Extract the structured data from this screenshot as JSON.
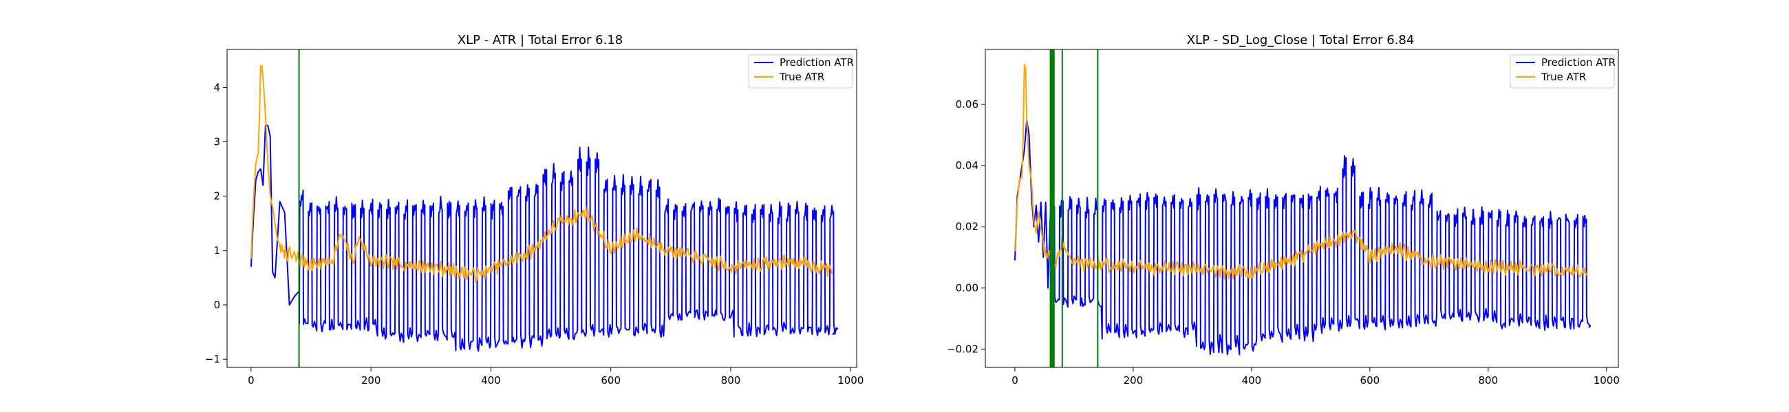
{
  "chart_data": [
    {
      "type": "line",
      "title": "XLP - ATR | Total Error 6.18",
      "xlabel": "",
      "ylabel": "",
      "xlim": [
        -40,
        1010
      ],
      "ylim": [
        -1.15,
        4.7
      ],
      "xticks": [
        0,
        200,
        400,
        600,
        800,
        1000
      ],
      "xtick_labels": [
        "0",
        "200",
        "400",
        "600",
        "800",
        "1000"
      ],
      "yticks": [
        -1,
        0,
        1,
        2,
        3,
        4
      ],
      "ytick_labels": [
        "−1",
        "0",
        "1",
        "2",
        "3",
        "4"
      ],
      "grid": false,
      "legend_position": "upper right",
      "vlines": [
        80
      ],
      "vline_color": "#008000",
      "series": [
        {
          "name": "Prediction ATR",
          "color": "#0000ff",
          "profile": {
            "x": [
              0,
              4,
              8,
              12,
              16,
              20,
              24,
              28,
              32,
              36,
              40,
              48,
              56,
              64,
              72,
              80
            ],
            "y": [
              0.7,
              1.6,
              2.3,
              2.45,
              2.5,
              2.2,
              3.3,
              3.3,
              3.1,
              0.6,
              0.5,
              1.9,
              1.7,
              0.0,
              0.15,
              0.25
            ]
          },
          "waves": [
            {
              "x": [
                80,
                90
              ],
              "hi": 2.1,
              "lo": -0.3
            },
            {
              "x": [
                90,
                200
              ],
              "hi": 1.9,
              "lo": -0.4
            },
            {
              "x": [
                200,
                330
              ],
              "hi": 1.9,
              "lo": -0.6
            },
            {
              "x": [
                330,
                420
              ],
              "hi": 1.9,
              "lo": -0.75
            },
            {
              "x": [
                420,
                480
              ],
              "hi": 2.2,
              "lo": -0.7
            },
            {
              "x": [
                480,
                540
              ],
              "hi": 2.5,
              "lo": -0.6
            },
            {
              "x": [
                540,
                580
              ],
              "hi": 2.8,
              "lo": -0.5
            },
            {
              "x": [
                580,
                680
              ],
              "hi": 2.3,
              "lo": -0.5
            },
            {
              "x": [
                680,
                800
              ],
              "hi": 1.9,
              "lo": -0.2
            },
            {
              "x": [
                800,
                970
              ],
              "hi": 1.8,
              "lo": -0.5
            }
          ],
          "period": 14.5,
          "end": {
            "x": 970,
            "y": -0.55
          }
        },
        {
          "name": "True ATR",
          "color": "#ffa500",
          "profile": {
            "x": [
              0,
              4,
              8,
              12,
              14,
              16,
              18,
              20,
              24,
              28,
              32,
              36,
              40,
              44,
              48
            ],
            "y": [
              0.85,
              1.9,
              2.6,
              2.8,
              3.5,
              4.4,
              4.4,
              4.2,
              3.5,
              2.6,
              2.0,
              1.8,
              1.5,
              1.2,
              1.1
            ]
          },
          "baseline": [
            {
              "x": 48,
              "y": 1.0
            },
            {
              "x": 100,
              "y": 0.75
            },
            {
              "x": 135,
              "y": 0.8
            },
            {
              "x": 150,
              "y": 1.3
            },
            {
              "x": 170,
              "y": 0.8
            },
            {
              "x": 180,
              "y": 1.25
            },
            {
              "x": 200,
              "y": 0.8
            },
            {
              "x": 300,
              "y": 0.7
            },
            {
              "x": 380,
              "y": 0.55
            },
            {
              "x": 420,
              "y": 0.75
            },
            {
              "x": 470,
              "y": 1.0
            },
            {
              "x": 510,
              "y": 1.5
            },
            {
              "x": 560,
              "y": 1.7
            },
            {
              "x": 600,
              "y": 1.0
            },
            {
              "x": 640,
              "y": 1.3
            },
            {
              "x": 700,
              "y": 1.0
            },
            {
              "x": 800,
              "y": 0.7
            },
            {
              "x": 900,
              "y": 0.8
            },
            {
              "x": 970,
              "y": 0.65
            }
          ]
        }
      ]
    },
    {
      "type": "line",
      "title": "XLP - SD_Log_Close | Total Error 6.84",
      "xlabel": "",
      "ylabel": "",
      "xlim": [
        -50,
        1020
      ],
      "ylim": [
        -0.026,
        0.078
      ],
      "xticks": [
        0,
        200,
        400,
        600,
        800,
        1000
      ],
      "xtick_labels": [
        "0",
        "200",
        "400",
        "600",
        "800",
        "1000"
      ],
      "yticks": [
        -0.02,
        0.0,
        0.02,
        0.04,
        0.06
      ],
      "ytick_labels": [
        "−0.02",
        "0.00",
        "0.02",
        "0.04",
        "0.06"
      ],
      "grid": false,
      "legend_position": "upper right",
      "vlines": [
        60,
        61.5,
        63,
        64.5,
        66,
        80,
        140
      ],
      "vline_color": "#008000",
      "series": [
        {
          "name": "Prediction ATR",
          "color": "#0000ff",
          "profile": {
            "x": [
              0,
              4,
              8,
              12,
              16,
              20,
              24,
              28,
              32,
              36,
              40,
              44,
              48,
              52,
              56,
              60
            ],
            "y": [
              0.009,
              0.03,
              0.035,
              0.04,
              0.045,
              0.055,
              0.05,
              0.03,
              0.02,
              0.027,
              0.015,
              0.028,
              0.01,
              0.028,
              0.0,
              0.025
            ]
          },
          "waves": [
            {
              "x": [
                60,
                140
              ],
              "hi": 0.028,
              "lo": -0.005
            },
            {
              "x": [
                140,
                300
              ],
              "hi": 0.03,
              "lo": -0.015
            },
            {
              "x": [
                300,
                400
              ],
              "hi": 0.031,
              "lo": -0.02
            },
            {
              "x": [
                400,
                500
              ],
              "hi": 0.031,
              "lo": -0.016
            },
            {
              "x": [
                500,
                540
              ],
              "hi": 0.033,
              "lo": -0.013
            },
            {
              "x": [
                540,
                580
              ],
              "hi": 0.042,
              "lo": -0.012
            },
            {
              "x": [
                580,
                700
              ],
              "hi": 0.031,
              "lo": -0.012
            },
            {
              "x": [
                700,
                800
              ],
              "hi": 0.025,
              "lo": -0.01
            },
            {
              "x": [
                800,
                970
              ],
              "hi": 0.024,
              "lo": -0.012
            }
          ],
          "period": 14.5,
          "end": {
            "x": 970,
            "y": -0.013
          }
        },
        {
          "name": "True ATR",
          "color": "#ffa500",
          "profile": {
            "x": [
              0,
              4,
              8,
              12,
              14,
              16,
              18,
              20,
              24,
              28,
              32,
              36,
              40,
              44,
              48
            ],
            "y": [
              0.012,
              0.028,
              0.036,
              0.036,
              0.05,
              0.073,
              0.072,
              0.055,
              0.04,
              0.035,
              0.022,
              0.018,
              0.025,
              0.019,
              0.015
            ]
          },
          "baseline": [
            {
              "x": 48,
              "y": 0.012
            },
            {
              "x": 70,
              "y": 0.008
            },
            {
              "x": 80,
              "y": 0.015
            },
            {
              "x": 100,
              "y": 0.008
            },
            {
              "x": 200,
              "y": 0.007
            },
            {
              "x": 300,
              "y": 0.006
            },
            {
              "x": 400,
              "y": 0.005
            },
            {
              "x": 450,
              "y": 0.008
            },
            {
              "x": 500,
              "y": 0.012
            },
            {
              "x": 545,
              "y": 0.016
            },
            {
              "x": 575,
              "y": 0.018
            },
            {
              "x": 600,
              "y": 0.01
            },
            {
              "x": 640,
              "y": 0.013
            },
            {
              "x": 700,
              "y": 0.009
            },
            {
              "x": 800,
              "y": 0.007
            },
            {
              "x": 900,
              "y": 0.006
            },
            {
              "x": 970,
              "y": 0.005
            }
          ]
        }
      ]
    }
  ]
}
